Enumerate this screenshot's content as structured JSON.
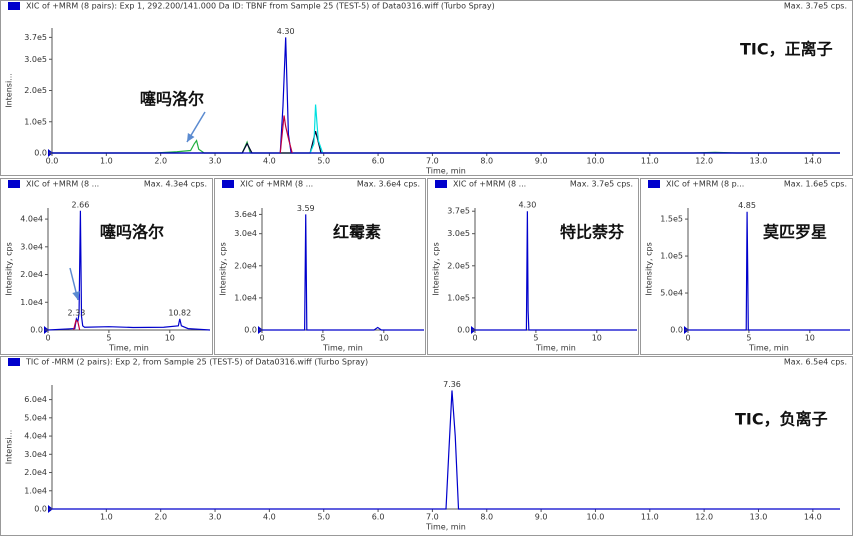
{
  "chart_data": [
    {
      "type": "line",
      "title": "XIC of +MRM (8 pairs): Exp 1, 292.200/141.000 Da ID: TBNF from Sample 25 (TEST-5) of Data0316.wiff (Turbo Spray)",
      "max_label": "Max. 3.7e5 cps.",
      "xlabel": "Time, min",
      "ylabel": "Intensi...",
      "annotations": [
        "TIC，正离子",
        "噻吗洛尔"
      ],
      "xlim": [
        0,
        14.5
      ],
      "ylim": [
        0,
        400000
      ],
      "xticks": [
        {
          "value": 0,
          "label": "0.0"
        },
        {
          "value": 1,
          "label": "1.0"
        },
        {
          "value": 2,
          "label": "2.0"
        },
        {
          "value": 3,
          "label": "3.0"
        },
        {
          "value": 4,
          "label": "4.0"
        },
        {
          "value": 5,
          "label": "5.0"
        },
        {
          "value": 6,
          "label": "6.0"
        },
        {
          "value": 7,
          "label": "7.0"
        },
        {
          "value": 8,
          "label": "8.0"
        },
        {
          "value": 9,
          "label": "9.0"
        },
        {
          "value": 10,
          "label": "10.0"
        },
        {
          "value": 11,
          "label": "11.0"
        },
        {
          "value": 12,
          "label": "12.0"
        },
        {
          "value": 13,
          "label": "13.0"
        },
        {
          "value": 14,
          "label": "14.0"
        }
      ],
      "yticks": [
        {
          "value": 0,
          "label": "0.0"
        },
        {
          "value": 100000,
          "label": "1.0e5"
        },
        {
          "value": 200000,
          "label": "2.0e5"
        },
        {
          "value": 300000,
          "label": "3.0e5"
        },
        {
          "value": 370000,
          "label": "3.7e5"
        }
      ],
      "peak_labels": [
        {
          "x": 4.3,
          "y": 370000,
          "label": "4.30"
        }
      ],
      "series": [
        {
          "color": "#20b040",
          "x": [
            0,
            1.9,
            2.3,
            2.55,
            2.62,
            2.66,
            2.7,
            2.8,
            3.5,
            3.59,
            3.65,
            11.8,
            12.2,
            12.6,
            14.5
          ],
          "values": [
            0,
            0,
            4000,
            8000,
            30000,
            40000,
            12000,
            0,
            0,
            35000,
            0,
            0,
            2000,
            0,
            0
          ]
        },
        {
          "color": "#000030",
          "x": [
            0,
            3.5,
            3.59,
            3.68,
            4.75,
            4.85,
            4.95,
            14.5
          ],
          "values": [
            0,
            0,
            30000,
            0,
            0,
            70000,
            0,
            0
          ]
        },
        {
          "color": "#00e0e0",
          "x": [
            4.75,
            4.82,
            4.85,
            4.9,
            4.98
          ],
          "values": [
            0,
            30000,
            155000,
            40000,
            0
          ]
        },
        {
          "color": "#0000cc",
          "x": [
            0,
            4.2,
            4.25,
            4.3,
            4.35,
            4.4,
            14.5
          ],
          "values": [
            0,
            0,
            150000,
            370000,
            60000,
            0,
            0
          ]
        },
        {
          "color": "#c00040",
          "x": [
            4.2,
            4.27,
            4.3,
            4.36,
            4.42
          ],
          "values": [
            0,
            120000,
            85000,
            40000,
            0
          ]
        }
      ]
    },
    {
      "type": "line",
      "title": "XIC of +MRM (8 ...",
      "max_label": "Max. 4.3e4 cps.",
      "xlabel": "Time, min",
      "ylabel": "Intensity, cps",
      "annotations": [
        "噻吗洛尔"
      ],
      "xlim": [
        0,
        13.3
      ],
      "ylim": [
        0,
        44000
      ],
      "xticks": [
        0,
        5,
        10
      ],
      "yticks": [
        {
          "value": 0,
          "label": "0.0"
        },
        {
          "value": 10000,
          "label": "1.0e4"
        },
        {
          "value": 20000,
          "label": "2.0e4"
        },
        {
          "value": 30000,
          "label": "3.0e4"
        },
        {
          "value": 40000,
          "label": "4.0e4"
        }
      ],
      "peak_labels": [
        {
          "x": 2.66,
          "y": 43000,
          "label": "2.66"
        },
        {
          "x": 2.33,
          "y": 4000,
          "label": "2.33"
        },
        {
          "x": 10.82,
          "y": 4000,
          "label": "10.82"
        }
      ],
      "series": [
        {
          "color": "#0000cc",
          "x": [
            0,
            2.2,
            2.33,
            2.45,
            2.55,
            2.66,
            2.75,
            2.85,
            3.0,
            5,
            7,
            9.5,
            10.7,
            10.82,
            10.95,
            11.5,
            13.3
          ],
          "values": [
            0,
            500,
            4000,
            3000,
            6000,
            43000,
            5000,
            1500,
            1000,
            1200,
            900,
            1000,
            1500,
            4000,
            1500,
            500,
            0
          ]
        },
        {
          "color": "#c00040",
          "x": [
            2.1,
            2.3,
            2.45,
            2.6
          ],
          "values": [
            0,
            3500,
            3000,
            0
          ]
        }
      ]
    },
    {
      "type": "line",
      "title": "XIC of +MRM (8 ...",
      "max_label": "Max. 3.6e4 cps.",
      "xlabel": "Time, min",
      "ylabel": "Intensity, cps",
      "annotations": [
        "红霉素"
      ],
      "xlim": [
        0,
        13.3
      ],
      "ylim": [
        0,
        38000
      ],
      "xticks": [
        0,
        5,
        10
      ],
      "yticks": [
        {
          "value": 0,
          "label": "0.0"
        },
        {
          "value": 10000,
          "label": "1.0e4"
        },
        {
          "value": 20000,
          "label": "2.0e4"
        },
        {
          "value": 30000,
          "label": "3.0e4"
        },
        {
          "value": 36000,
          "label": "3.6e4"
        }
      ],
      "peak_labels": [
        {
          "x": 3.59,
          "y": 36000,
          "label": "3.59"
        }
      ],
      "series": [
        {
          "color": "#0000cc",
          "x": [
            0,
            3.5,
            3.59,
            3.68,
            9.2,
            9.5,
            9.8,
            13.3
          ],
          "values": [
            0,
            0,
            36000,
            0,
            0,
            800,
            0,
            0
          ]
        }
      ]
    },
    {
      "type": "line",
      "title": "XIC of +MRM (8 ...",
      "max_label": "Max. 3.7e5 cps.",
      "xlabel": "Time, min",
      "ylabel": "Intensity, cps",
      "annotations": [
        "特比萘芬"
      ],
      "xlim": [
        0,
        13.3
      ],
      "ylim": [
        0,
        380000
      ],
      "xticks": [
        0,
        5,
        10
      ],
      "yticks": [
        {
          "value": 0,
          "label": "0.0"
        },
        {
          "value": 100000,
          "label": "1.0e5"
        },
        {
          "value": 200000,
          "label": "2.0e5"
        },
        {
          "value": 300000,
          "label": "3.0e5"
        },
        {
          "value": 370000,
          "label": "3.7e5"
        }
      ],
      "peak_labels": [
        {
          "x": 4.3,
          "y": 370000,
          "label": "4.30"
        }
      ],
      "series": [
        {
          "color": "#0000cc",
          "x": [
            0,
            4.22,
            4.3,
            4.36,
            4.42,
            13.3
          ],
          "values": [
            0,
            0,
            370000,
            60000,
            0,
            0
          ]
        }
      ]
    },
    {
      "type": "line",
      "title": "XIC of +MRM (8 p...",
      "max_label": "Max. 1.6e5 cps.",
      "xlabel": "Time, min",
      "ylabel": "Intensity, cps",
      "annotations": [
        "莫匹罗星"
      ],
      "xlim": [
        0,
        13.3
      ],
      "ylim": [
        0,
        165000
      ],
      "xticks": [
        0,
        5,
        10
      ],
      "yticks": [
        {
          "value": 0,
          "label": "0.0"
        },
        {
          "value": 50000,
          "label": "5.0e4"
        },
        {
          "value": 100000,
          "label": "1.0e5"
        },
        {
          "value": 150000,
          "label": "1.5e5"
        }
      ],
      "peak_labels": [
        {
          "x": 4.85,
          "y": 160000,
          "label": "4.85"
        }
      ],
      "series": [
        {
          "color": "#0000cc",
          "x": [
            0,
            4.78,
            4.85,
            4.9,
            4.95,
            13.3
          ],
          "values": [
            0,
            0,
            160000,
            85000,
            0,
            0
          ]
        }
      ]
    },
    {
      "type": "line",
      "title": "TIC of -MRM (2 pairs): Exp 2, from Sample 25 (TEST-5) of Data0316.wiff (Turbo Spray)",
      "max_label": "Max. 6.5e4 cps.",
      "xlabel": "Time, min",
      "ylabel": "Intensi...",
      "annotations": [
        "TIC，负离子"
      ],
      "xlim": [
        0,
        14.5
      ],
      "ylim": [
        0,
        68000
      ],
      "xticks": [
        {
          "value": 1,
          "label": "1.0"
        },
        {
          "value": 2,
          "label": "2.0"
        },
        {
          "value": 3,
          "label": "3.0"
        },
        {
          "value": 4,
          "label": "4.0"
        },
        {
          "value": 5,
          "label": "5.0"
        },
        {
          "value": 6,
          "label": "6.0"
        },
        {
          "value": 7,
          "label": "7.0"
        },
        {
          "value": 8,
          "label": "8.0"
        },
        {
          "value": 9,
          "label": "9.0"
        },
        {
          "value": 10,
          "label": "10.0"
        },
        {
          "value": 11,
          "label": "11.0"
        },
        {
          "value": 12,
          "label": "12.0"
        },
        {
          "value": 13,
          "label": "13.0"
        },
        {
          "value": 14,
          "label": "14.0"
        }
      ],
      "yticks": [
        {
          "value": 0,
          "label": "0.0"
        },
        {
          "value": 10000,
          "label": "1.0e4"
        },
        {
          "value": 20000,
          "label": "2.0e4"
        },
        {
          "value": 30000,
          "label": "3.0e4"
        },
        {
          "value": 40000,
          "label": "4.0e4"
        },
        {
          "value": 50000,
          "label": "5.0e4"
        },
        {
          "value": 60000,
          "label": "6.0e4"
        }
      ],
      "peak_labels": [
        {
          "x": 7.36,
          "y": 65000,
          "label": "7.36"
        }
      ],
      "series": [
        {
          "color": "#0000cc",
          "x": [
            0,
            7.25,
            7.3,
            7.36,
            7.42,
            7.48,
            14.5
          ],
          "values": [
            0,
            0,
            30000,
            65000,
            40000,
            0,
            0
          ]
        }
      ]
    }
  ]
}
